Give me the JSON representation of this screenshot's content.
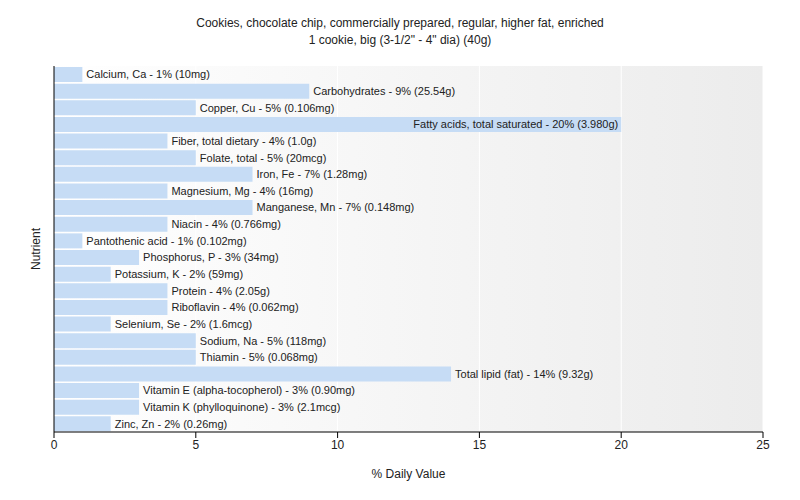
{
  "chart_data": {
    "type": "bar",
    "title": "Cookies, chocolate chip, commercially prepared, regular, higher fat, enriched",
    "subtitle": "1 cookie, big (3-1/2\" - 4\" dia) (40g)",
    "x_label": "% Daily Value",
    "y_label": "Nutrient",
    "orientation": "horizontal",
    "categories": [
      "Calcium, Ca - 1% (10mg)",
      "Carbohydrates - 9% (25.54g)",
      "Copper, Cu - 5% (0.106mg)",
      "Fatty acids, total saturated - 20% (3.980g)",
      "Fiber, total dietary - 4% (1.0g)",
      "Folate, total - 5% (20mcg)",
      "Iron, Fe - 7% (1.28mg)",
      "Magnesium, Mg - 4% (16mg)",
      "Manganese, Mn - 7% (0.148mg)",
      "Niacin - 4% (0.766mg)",
      "Pantothenic acid - 1% (0.102mg)",
      "Phosphorus, P - 3% (34mg)",
      "Potassium, K - 2% (59mg)",
      "Protein - 4% (2.05g)",
      "Riboflavin - 4% (0.062mg)",
      "Selenium, Se - 2% (1.6mcg)",
      "Sodium, Na - 5% (118mg)",
      "Thiamin - 5% (0.068mg)",
      "Total lipid (fat) - 14% (9.32g)",
      "Vitamin E (alpha-tocopherol) - 3% (0.90mg)",
      "Vitamin K (phylloquinone) - 3% (2.1mcg)",
      "Zinc, Zn - 2% (0.26mg)"
    ],
    "values": [
      1,
      9,
      5,
      20,
      4,
      5,
      7,
      4,
      7,
      4,
      1,
      3,
      2,
      4,
      4,
      2,
      5,
      5,
      14,
      3,
      3,
      2
    ],
    "color": "#c6dcf5",
    "xlim": [
      0,
      25
    ],
    "xticks": [
      0,
      5,
      10,
      15,
      20,
      25
    ],
    "grid": true,
    "tick_labels": "x"
  }
}
